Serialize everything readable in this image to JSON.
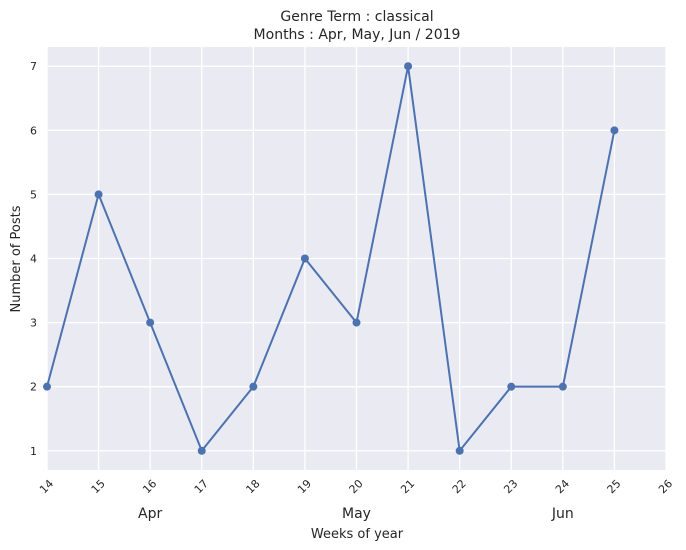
{
  "chart_data": {
    "type": "line",
    "title": [
      "Genre Term : classical",
      "Months : Apr, May, Jun / 2019"
    ],
    "xlabel": "Weeks of year",
    "ylabel": "Number of Posts",
    "x": [
      14,
      15,
      16,
      17,
      18,
      19,
      20,
      21,
      22,
      23,
      24,
      25
    ],
    "values": [
      2,
      5,
      3,
      1,
      2,
      4,
      3,
      7,
      1,
      2,
      2,
      6
    ],
    "x_ticks": [
      14,
      15,
      16,
      17,
      18,
      19,
      20,
      21,
      22,
      23,
      24,
      25,
      26
    ],
    "y_ticks": [
      1,
      2,
      3,
      4,
      5,
      6,
      7
    ],
    "xlim": [
      14,
      26
    ],
    "ylim": [
      0.7,
      7.3
    ],
    "month_labels": [
      {
        "label": "Apr",
        "x": 16
      },
      {
        "label": "May",
        "x": 20
      },
      {
        "label": "Jun",
        "x": 24
      }
    ],
    "grid": true,
    "colors": {
      "line": "#4c72b0",
      "background": "#eaeaf2",
      "grid": "#ffffff"
    }
  }
}
